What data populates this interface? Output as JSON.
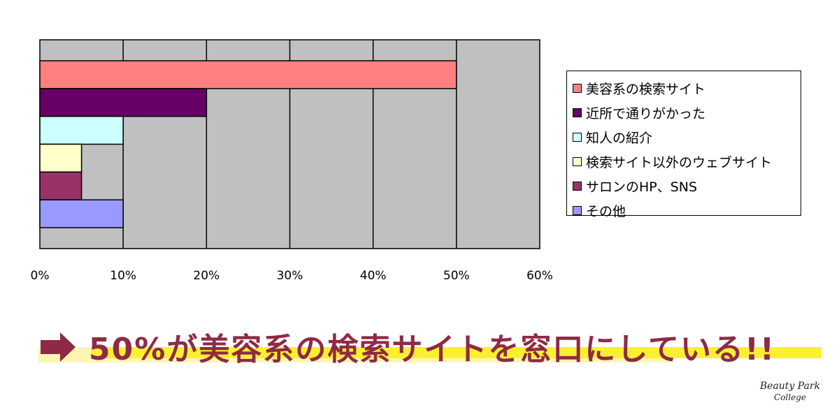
{
  "chart_data": {
    "type": "bar",
    "orientation": "horizontal",
    "categories": [
      "美容系の検索サイト",
      "近所で通りがかった",
      "知人の紹介",
      "検索サイト以外のウェブサイト",
      "サロンのHP、SNS",
      "その他"
    ],
    "values": [
      50,
      20,
      10,
      5,
      5,
      10
    ],
    "colors": [
      "#ff8080",
      "#660066",
      "#ccffff",
      "#ffffcc",
      "#993366",
      "#9999ff"
    ],
    "xticks": [
      "0%",
      "10%",
      "20%",
      "30%",
      "40%",
      "50%",
      "60%"
    ],
    "xlim": [
      0,
      60
    ],
    "grid": true,
    "plot_background": "#c0c0c0",
    "legend_position": "right"
  },
  "headline": {
    "text": "50%が美容系の検索サイトを窓口にしている!!",
    "color": "#8e2a45",
    "highlight_color": "#fbf030"
  },
  "logo": {
    "line1": "Beauty Park",
    "line2": "College"
  }
}
